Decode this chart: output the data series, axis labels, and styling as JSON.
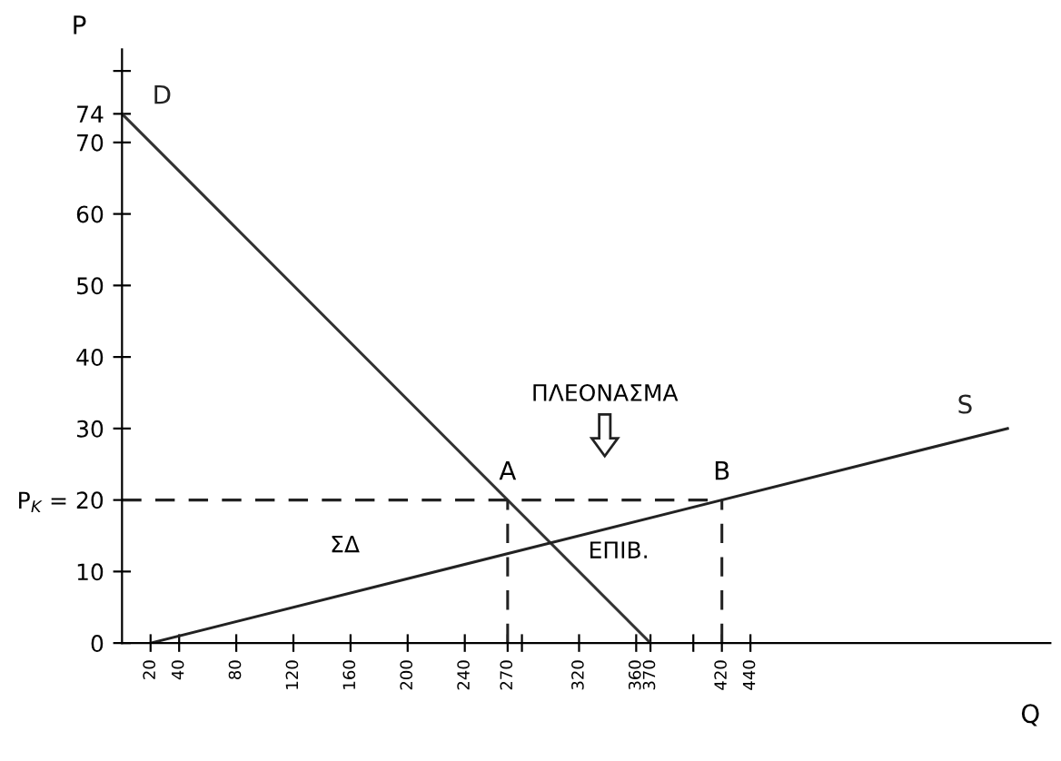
{
  "chart_data": {
    "type": "line",
    "xlabel": "Q",
    "ylabel": "P",
    "xlim": [
      0,
      650
    ],
    "ylim": [
      0,
      83
    ],
    "xticks": [
      20,
      40,
      80,
      120,
      160,
      200,
      240,
      270,
      {
        "value": 280,
        "label": null
      },
      320,
      360,
      370,
      {
        "value": 400,
        "label": null
      },
      420,
      440
    ],
    "yticks": [
      0,
      10,
      {
        "value": 20,
        "label": "P$_{K}$ = 20"
      },
      30,
      40,
      50,
      60,
      70,
      74,
      {
        "value": 80,
        "label": null
      }
    ],
    "series": [
      {
        "name": "D",
        "color": "#333333",
        "x": [
          0,
          370
        ],
        "values": [
          74,
          0
        ]
      },
      {
        "name": "S",
        "color": "#222222",
        "x": [
          20,
          620
        ],
        "values": [
          0,
          30
        ]
      },
      {
        "color": "#222222",
        "line_style": "dashed",
        "x": [
          0,
          420
        ],
        "values": [
          20,
          20
        ]
      },
      {
        "color": "#222222",
        "line_style": "dashed",
        "x": [
          270,
          270
        ],
        "values": [
          0,
          20
        ]
      },
      {
        "color": "#222222",
        "line_style": "dashed",
        "x": [
          420,
          420
        ],
        "values": [
          0,
          20
        ]
      }
    ],
    "annotations": [
      {
        "text": "A",
        "x": 270,
        "y": 20
      },
      {
        "text": "B",
        "x": 420,
        "y": 20
      },
      "ΣΔ",
      "ΕΠΙΒ.",
      "ΠΛΕΟΝΑΣΜΑ"
    ],
    "grid": false,
    "legend": false,
    "marker": "none",
    "line_style": "solid"
  }
}
